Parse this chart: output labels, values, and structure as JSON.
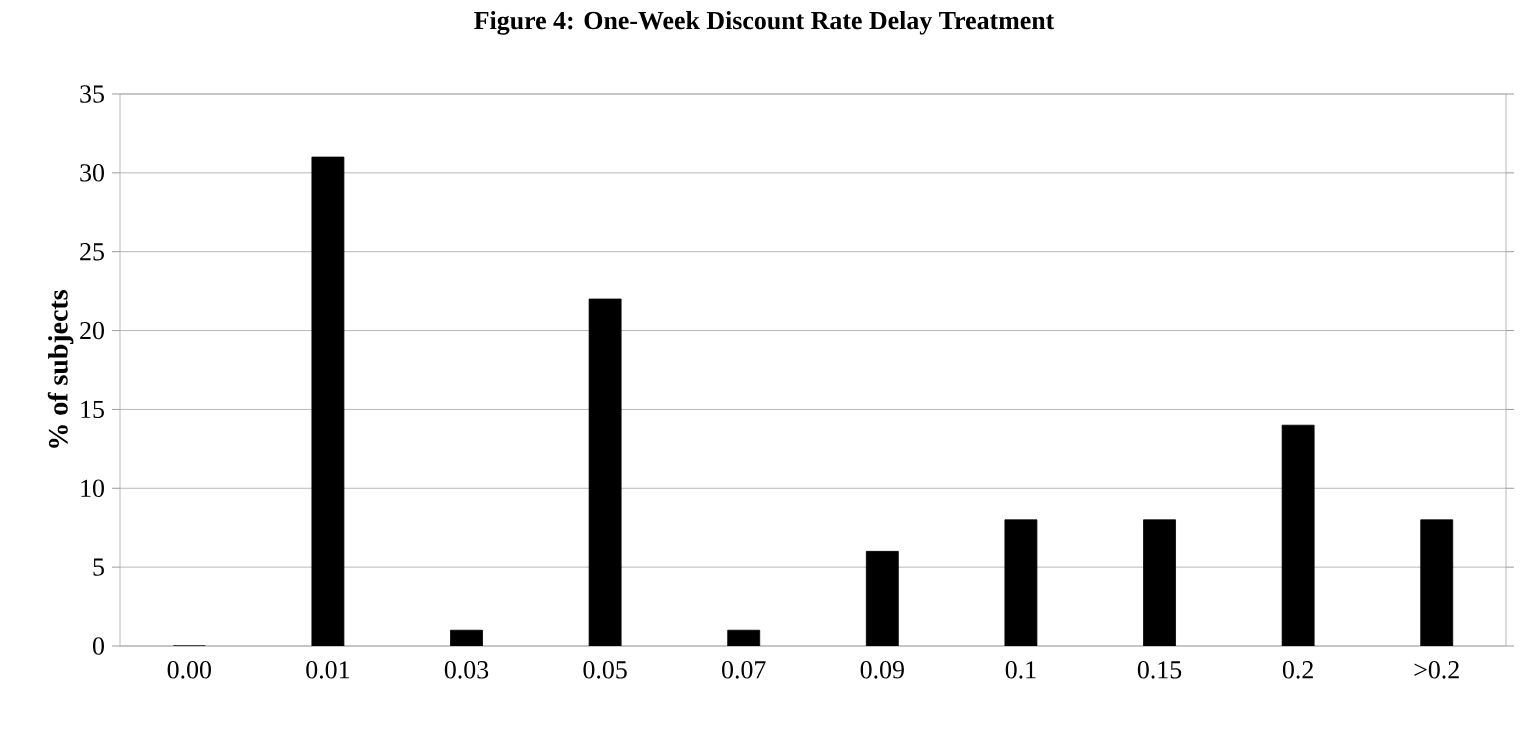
{
  "chart_data": {
    "type": "bar",
    "title": "Figure 4: One-Week Discount Rate Delay Treatment",
    "ylabel": "% of subjects",
    "categories": [
      "0.00",
      "0.01",
      "0.03",
      "0.05",
      "0.07",
      "0.09",
      "0.1",
      "0.15",
      "0.2",
      ">0.2"
    ],
    "values": [
      0,
      31,
      1,
      22,
      1,
      6,
      8,
      8,
      14,
      8
    ],
    "color": "#000000",
    "ylim": [
      0,
      35
    ],
    "yticks": [
      0,
      5,
      10,
      15,
      20,
      25,
      30,
      35
    ],
    "grid": "y"
  }
}
